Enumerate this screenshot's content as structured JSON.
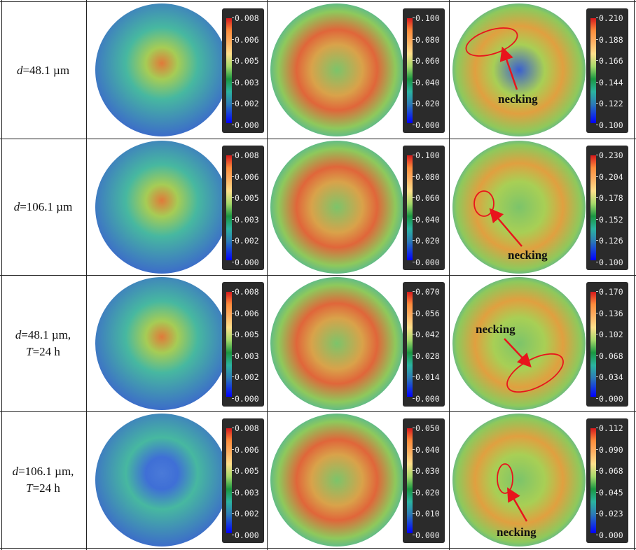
{
  "rows": [
    {
      "label_d": "48.1 µm",
      "label_t": ""
    },
    {
      "label_d": "106.1 µm",
      "label_t": ""
    },
    {
      "label_d": "48.1 µm,",
      "label_t": "24 h"
    },
    {
      "label_d": "106.1 µm,",
      "label_t": "24 h"
    }
  ],
  "label_prefix_d": "d",
  "label_prefix_t": "T",
  "eq": "=",
  "annotation_text": "necking",
  "colorbars": [
    [
      [
        "0.008",
        "0.006",
        "0.005",
        "0.003",
        "0.002",
        "0.000"
      ],
      [
        "0.100",
        "0.080",
        "0.060",
        "0.040",
        "0.020",
        "0.000"
      ],
      [
        "0.210",
        "0.188",
        "0.166",
        "0.144",
        "0.122",
        "0.100"
      ]
    ],
    [
      [
        "0.008",
        "0.006",
        "0.005",
        "0.003",
        "0.002",
        "0.000"
      ],
      [
        "0.100",
        "0.080",
        "0.060",
        "0.040",
        "0.020",
        "0.000"
      ],
      [
        "0.230",
        "0.204",
        "0.178",
        "0.152",
        "0.126",
        "0.100"
      ]
    ],
    [
      [
        "0.008",
        "0.006",
        "0.005",
        "0.003",
        "0.002",
        "0.000"
      ],
      [
        "0.070",
        "0.056",
        "0.042",
        "0.028",
        "0.014",
        "0.000"
      ],
      [
        "0.170",
        "0.136",
        "0.102",
        "0.068",
        "0.034",
        "0.000"
      ]
    ],
    [
      [
        "0.008",
        "0.006",
        "0.005",
        "0.003",
        "0.002",
        "0.000"
      ],
      [
        "0.050",
        "0.040",
        "0.030",
        "0.020",
        "0.010",
        "0.000"
      ],
      [
        "0.112",
        "0.090",
        "0.068",
        "0.045",
        "0.023",
        "0.000"
      ]
    ]
  ],
  "colors": {
    "annotation_red": "#e8141c",
    "border": "#222222",
    "colorbar_bg": "#2b2b2b"
  }
}
